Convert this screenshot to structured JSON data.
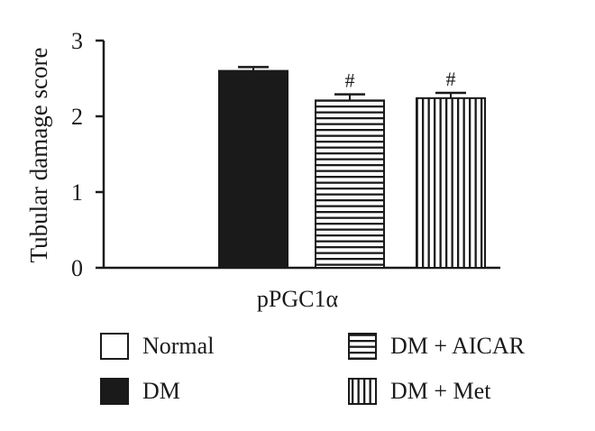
{
  "chart_data": {
    "type": "bar",
    "ylabel": "Tubular damage score",
    "xlabel": "pPGC1α",
    "ylim": [
      0,
      3
    ],
    "yticks": [
      "0",
      "1",
      "2",
      "3"
    ],
    "categories": [
      "pPGC1α"
    ],
    "series": [
      {
        "name": "Normal",
        "value": 0,
        "error": 0,
        "pattern": "solid-white",
        "annotation": ""
      },
      {
        "name": "DM",
        "value": 2.6,
        "error": 0.05,
        "pattern": "solid-black",
        "annotation": ""
      },
      {
        "name": "DM + AICAR",
        "value": 2.21,
        "error": 0.08,
        "pattern": "horizontal-stripes",
        "annotation": "#"
      },
      {
        "name": "DM + Met",
        "value": 2.24,
        "error": 0.07,
        "pattern": "vertical-stripes",
        "annotation": "#"
      }
    ],
    "legend_position": "bottom",
    "grid": false,
    "colors": {
      "ink": "#1a1a1a",
      "background": "#ffffff"
    }
  }
}
